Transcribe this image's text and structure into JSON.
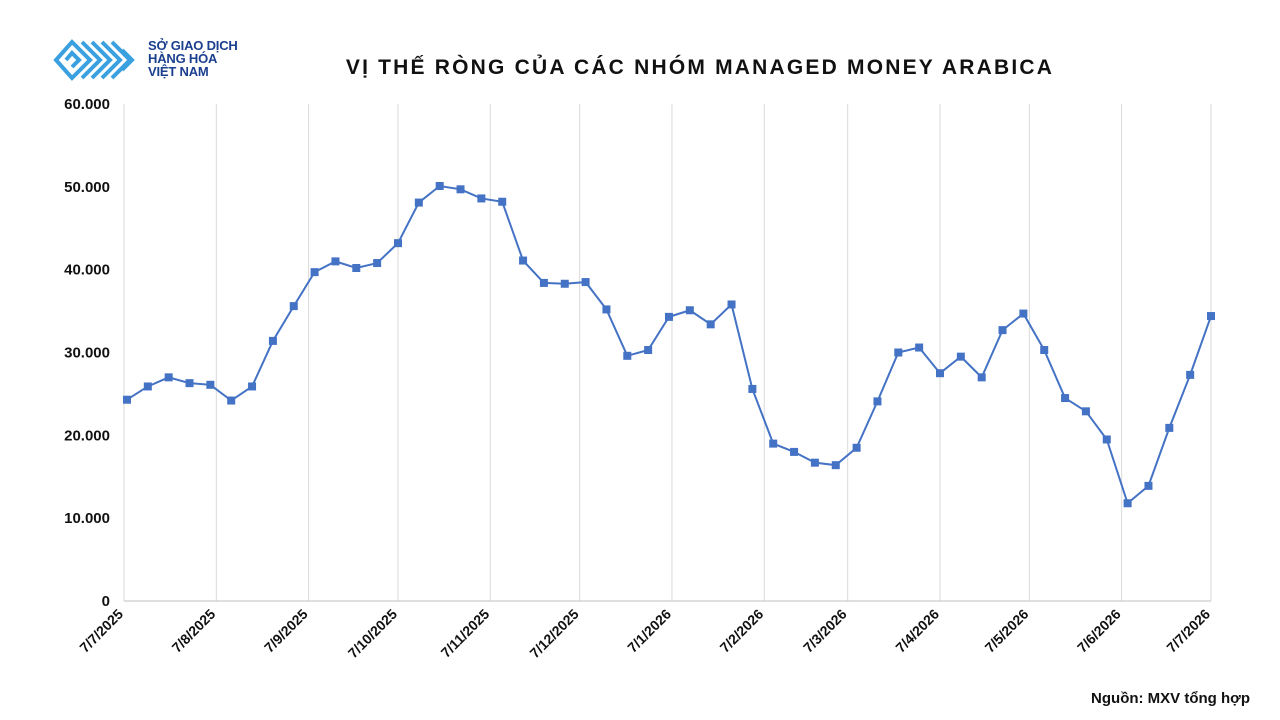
{
  "logo": {
    "line1": "SỞ GIAO DỊCH",
    "line2": "HÀNG HÓA",
    "line3": "VIỆT NAM",
    "color": "#3aa0e0",
    "text_color": "#1b3f8f"
  },
  "source": "Nguồn: MXV tổng hợp",
  "chart_data": {
    "type": "line",
    "title": "VỊ THẾ RÒNG CỦA CÁC NHÓM MANAGED MONEY ARABICA",
    "xlabel": "",
    "ylabel": "",
    "ylim": [
      0,
      60000
    ],
    "yticks": [
      0,
      10000,
      20000,
      30000,
      40000,
      50000,
      60000
    ],
    "ytick_labels": [
      "0",
      "10.000",
      "20.000",
      "30.000",
      "40.000",
      "50.000",
      "60.000"
    ],
    "xticks": [
      "7/7/2025",
      "7/8/2025",
      "7/9/2025",
      "7/10/2025",
      "7/11/2025",
      "7/12/2025",
      "7/1/2026",
      "7/2/2026",
      "7/3/2026",
      "7/4/2026",
      "7/5/2026",
      "7/6/2026",
      "7/7/2026"
    ],
    "x_range": [
      "2025-07-07",
      "2026-07-07"
    ],
    "grid": "vertical",
    "legend": "none",
    "color": "#4472c4",
    "series": [
      {
        "x": [
          "2025-07-08",
          "2025-07-15",
          "2025-07-22",
          "2025-07-29",
          "2025-08-05",
          "2025-08-12",
          "2025-08-19",
          "2025-08-26",
          "2025-09-02",
          "2025-09-09",
          "2025-09-16",
          "2025-09-23",
          "2025-09-30",
          "2025-10-07",
          "2025-10-14",
          "2025-10-21",
          "2025-10-28",
          "2025-11-04",
          "2025-11-11",
          "2025-11-18",
          "2025-11-25",
          "2025-12-02",
          "2025-12-09",
          "2025-12-16",
          "2025-12-23",
          "2025-12-30",
          "2026-01-06",
          "2026-01-13",
          "2026-01-20",
          "2026-01-27",
          "2026-02-03",
          "2026-02-10",
          "2026-02-17",
          "2026-02-24",
          "2026-03-03",
          "2026-03-10",
          "2026-03-17",
          "2026-03-24",
          "2026-03-31",
          "2026-04-07",
          "2026-04-14",
          "2026-04-21",
          "2026-04-28",
          "2026-05-05",
          "2026-05-12",
          "2026-05-19",
          "2026-05-26",
          "2026-06-02",
          "2026-06-09",
          "2026-06-16",
          "2026-06-23",
          "2026-06-30",
          "2026-07-07"
        ],
        "values": [
          24300,
          25900,
          27000,
          26300,
          26100,
          24200,
          25900,
          31400,
          35600,
          39700,
          41000,
          40200,
          40800,
          43200,
          48100,
          50100,
          49700,
          48600,
          48200,
          41100,
          38400,
          38300,
          38500,
          35200,
          29600,
          30300,
          34300,
          35100,
          33400,
          35800,
          25600,
          19000,
          18000,
          16700,
          16400,
          18500,
          24100,
          30000,
          30600,
          27500,
          29500,
          27000,
          32700,
          34700,
          30300,
          24500,
          22900,
          19500,
          11800,
          13900,
          20900,
          27300,
          34400
        ]
      }
    ]
  }
}
